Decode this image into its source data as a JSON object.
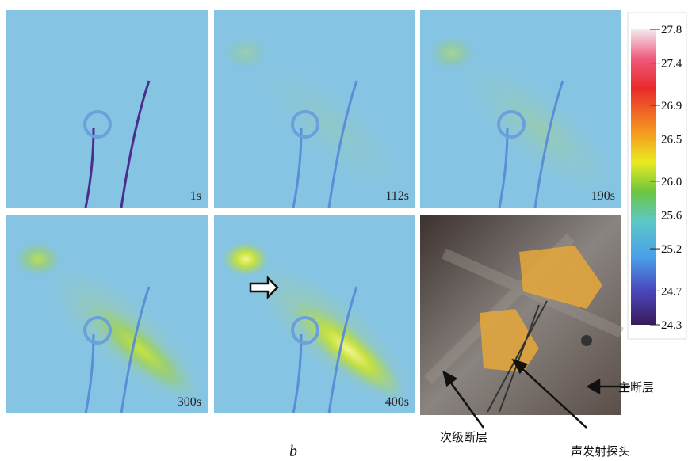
{
  "panels": [
    {
      "label": "1s"
    },
    {
      "label": "112s"
    },
    {
      "label": "190s"
    },
    {
      "label": "300s"
    },
    {
      "label": "400s"
    }
  ],
  "photo": {
    "labels": {
      "main_fault": "主断层",
      "secondary_fault": "次级断层",
      "probe": "声发射探头"
    }
  },
  "caption": "b",
  "colorbar": {
    "lim": [
      24.3,
      27.8
    ],
    "ticks": [
      27.8,
      27.4,
      26.9,
      26.5,
      {
        "value": 26,
        "label": "26.0"
      },
      25.6,
      25.2,
      24.7,
      24.3
    ]
  }
}
